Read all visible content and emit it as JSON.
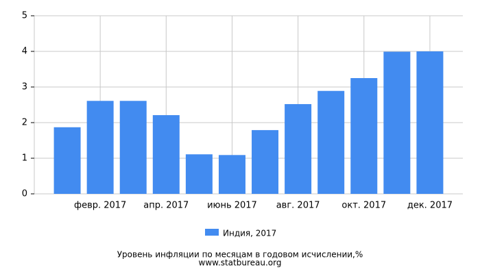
{
  "chart_data": {
    "type": "bar",
    "title": "Уровень инфляции по месяцам в годовом исчислении,%",
    "source": "www.statbureau.org",
    "categories": [
      null,
      "февр. 2017",
      null,
      "апр. 2017",
      null,
      "июнь 2017",
      null,
      "авг. 2017",
      null,
      "окт. 2017",
      null,
      "дек. 2017"
    ],
    "series": [
      {
        "name": "Индия, 2017",
        "color": "#428bf0",
        "values": [
          1.87,
          2.61,
          2.61,
          2.21,
          1.11,
          1.09,
          1.79,
          2.52,
          2.89,
          3.25,
          3.99,
          4.0
        ]
      }
    ],
    "ylim": [
      0,
      5
    ],
    "yticks": [
      0,
      1,
      2,
      3,
      4,
      5
    ],
    "grid": true
  }
}
